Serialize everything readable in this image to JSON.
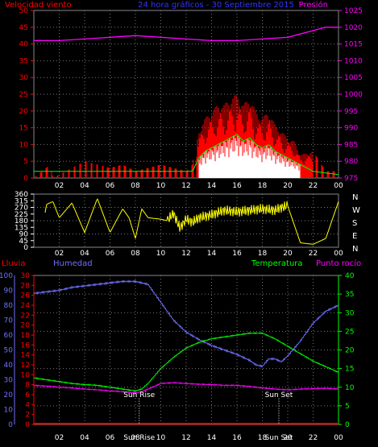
{
  "header": {
    "left_label": "Velocidad viento",
    "center_label": "24 hora gráficos - 30 Septiembre 2015",
    "right_label": "Presión"
  },
  "bottom_header": {
    "rain_label": "Lluvia",
    "humidity_label": "Humedad",
    "temperature_label": "Temperatura",
    "dewpoint_label": "Punto rocío"
  },
  "x_ticks": [
    "02",
    "04",
    "06",
    "08",
    "10",
    "12",
    "14",
    "16",
    "18",
    "20",
    "22",
    "00"
  ],
  "compass": [
    "N",
    "W",
    "S",
    "E",
    "N"
  ],
  "sun": {
    "rise_label": "Sun Rise",
    "set_label": "Sun Set"
  },
  "colors": {
    "wind": "#ff0000",
    "gust": "#00ff00",
    "wind_fill": "#ffffff",
    "pressure": "#ff00ff",
    "direction": "#ffff00",
    "humidity": "#7070ff",
    "temperature": "#00ff00",
    "dewpoint": "#ff00ff",
    "rain": "#ff0000"
  },
  "chart_data": [
    {
      "type": "area",
      "title": "24 hora gráficos - 30 Septiembre 2015",
      "x_range_hours": [
        0,
        24
      ],
      "x_ticks": [
        "02",
        "04",
        "06",
        "08",
        "10",
        "12",
        "14",
        "16",
        "18",
        "20",
        "22",
        "00"
      ],
      "left_axis": {
        "label": "Velocidad viento",
        "range": [
          0,
          50
        ],
        "ticks": [
          0,
          5,
          10,
          15,
          20,
          25,
          30,
          35,
          40,
          45,
          50
        ]
      },
      "right_axis": {
        "label": "Presión",
        "range": [
          975,
          1025
        ],
        "ticks": [
          975,
          980,
          985,
          990,
          995,
          1000,
          1005,
          1010,
          1015,
          1020,
          1025
        ]
      },
      "series": [
        {
          "name": "Presión",
          "axis": "right",
          "x": [
            0,
            2,
            4,
            6,
            8,
            10,
            12,
            14,
            16,
            18,
            20,
            22,
            23,
            24
          ],
          "values": [
            1016,
            1016,
            1016.5,
            1017,
            1017.5,
            1017,
            1016.5,
            1016,
            1016,
            1016.5,
            1017,
            1019,
            1020,
            1020
          ]
        },
        {
          "name": "Velocidad viento",
          "axis": "left",
          "x": [
            0,
            1.3,
            1.5,
            3,
            4,
            6,
            7,
            8,
            9,
            10,
            11,
            12,
            12.5,
            13,
            13.5,
            14,
            14.5,
            15,
            15.5,
            16,
            16.5,
            17,
            17.5,
            18,
            18.5,
            19,
            19.5,
            20,
            20.5,
            21,
            22,
            23,
            24
          ],
          "values": [
            0,
            4,
            0,
            3,
            5,
            3,
            4,
            2,
            3,
            4,
            3,
            2,
            4,
            14,
            18,
            20,
            22,
            22,
            24,
            25,
            22,
            24,
            20,
            18,
            20,
            16,
            14,
            12,
            11,
            7,
            8,
            2,
            2
          ]
        },
        {
          "name": "Racha",
          "axis": "left",
          "x": [
            0,
            6,
            10,
            12.5,
            13,
            13.5,
            14,
            14.5,
            15,
            15.5,
            16,
            16.5,
            17,
            17.5,
            18,
            18.5,
            19,
            19.5,
            20,
            20.5,
            21,
            22,
            24
          ],
          "values": [
            2,
            2,
            2,
            2,
            6,
            8,
            9,
            10,
            11,
            12,
            13,
            11,
            12,
            10,
            9,
            10,
            8,
            7,
            6,
            5,
            4,
            2,
            1
          ]
        }
      ]
    },
    {
      "type": "line",
      "title": "",
      "x_range_hours": [
        0,
        24
      ],
      "left_axis": {
        "range": [
          0,
          360
        ],
        "ticks": [
          0,
          45,
          90,
          135,
          180,
          225,
          270,
          315,
          360
        ]
      },
      "right_labels": [
        "N",
        "W",
        "S",
        "E",
        "N"
      ],
      "series": [
        {
          "name": "",
          "x": [
            0.5,
            1,
            1.5,
            2,
            3,
            4,
            5,
            6,
            7,
            7.5,
            8,
            8.5,
            9,
            10,
            10.5,
            11,
            11.5,
            12,
            12.5,
            13,
            13.5,
            14,
            15,
            16,
            17,
            18,
            19,
            19.5,
            20,
            21,
            22,
            23,
            24
          ],
          "values": [
            40,
            290,
            310,
            200,
            300,
            100,
            330,
            100,
            260,
            200,
            60,
            260,
            200,
            190,
            180,
            230,
            130,
            190,
            170,
            200,
            210,
            220,
            250,
            240,
            250,
            260,
            250,
            270,
            280,
            30,
            20,
            60,
            310
          ]
        }
      ]
    },
    {
      "type": "line",
      "title": "",
      "x_range_hours": [
        0,
        24
      ],
      "axes": {
        "rain": {
          "label": "Lluvia",
          "range": [
            0,
            100
          ],
          "ticks": [
            0,
            10,
            20,
            30,
            40,
            50,
            60,
            70,
            80,
            90,
            100
          ]
        },
        "humidity": {
          "label": "Humedad",
          "range": [
            0,
            30
          ],
          "ticks": [
            0,
            2,
            4,
            6,
            8,
            10,
            12,
            14,
            16,
            18,
            20,
            22,
            24,
            26,
            28,
            30
          ]
        },
        "temperature": {
          "label": "Temperatura",
          "range": [
            0,
            40
          ],
          "ticks": [
            0,
            5,
            10,
            15,
            20,
            25,
            30,
            35,
            40
          ]
        }
      },
      "series": [
        {
          "name": "Humedad",
          "axis": "rain",
          "x": [
            0,
            1,
            2,
            3,
            4,
            5,
            6,
            7,
            8,
            8.5,
            9,
            10,
            11,
            12,
            13,
            14,
            15,
            16,
            17,
            17.5,
            18,
            18.5,
            19,
            19.5,
            20,
            21,
            22,
            23,
            24
          ],
          "values": [
            88,
            89,
            90,
            92,
            93,
            94,
            95,
            96,
            96,
            95,
            94,
            82,
            70,
            62,
            57,
            53,
            50,
            47,
            43,
            40,
            39,
            44,
            44,
            42,
            46,
            56,
            68,
            76,
            80
          ]
        },
        {
          "name": "Temperatura",
          "axis": "temperature",
          "x": [
            0,
            1,
            2,
            3,
            4,
            5,
            6,
            7,
            8,
            8.5,
            9,
            10,
            11,
            12,
            13,
            14,
            15,
            16,
            17,
            18,
            19,
            20,
            21,
            22,
            23,
            24
          ],
          "values": [
            12.5,
            12,
            11.5,
            11,
            10.7,
            10.5,
            10,
            9.5,
            9,
            9.5,
            11,
            15,
            18,
            20.5,
            22,
            23,
            23.5,
            24,
            24.5,
            24.5,
            23,
            21,
            19,
            17,
            15.5,
            14
          ]
        },
        {
          "name": "Punto rocío",
          "axis": "temperature",
          "x": [
            0,
            1,
            2,
            3,
            4,
            5,
            6,
            7,
            8,
            8.5,
            9,
            10,
            11,
            12,
            13,
            14,
            15,
            16,
            17,
            18,
            19,
            20,
            21,
            22,
            23,
            24
          ],
          "values": [
            10.5,
            10.3,
            10,
            9.8,
            9.5,
            9.3,
            9,
            8.8,
            8.5,
            8.8,
            9.5,
            11,
            11.2,
            11,
            10.8,
            10.7,
            10.5,
            10.5,
            10.2,
            9.8,
            9.5,
            9.3,
            9.5,
            9.6,
            9.7,
            9.5
          ]
        },
        {
          "name": "Lluvia",
          "axis": "rain",
          "x": [
            0,
            24
          ],
          "values": [
            0,
            0
          ]
        }
      ],
      "annotations": [
        {
          "text": "Sun Rise",
          "x_hour": 8.3
        },
        {
          "text": "Sun Set",
          "x_hour": 19.3
        }
      ]
    }
  ]
}
